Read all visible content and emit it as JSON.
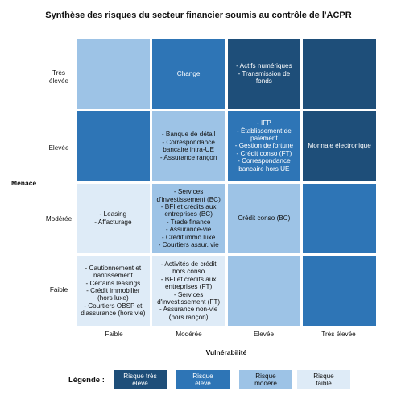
{
  "title": "Synthèse des risques du secteur financier soumis au contrôle de l'ACPR",
  "y_axis_label": "Menace",
  "x_axis_label": "Vulnérabilité",
  "row_labels": [
    "Très\nélevée",
    "Elevée",
    "Modérée",
    "Faible"
  ],
  "col_labels": [
    "Faible",
    "Modérée",
    "Elevée",
    "Très élevée"
  ],
  "colors": {
    "risque_tres_eleve": "#1e4e79",
    "risque_eleve": "#2e75b6",
    "risque_modere": "#9dc3e6",
    "risque_faible": "#deebf7"
  },
  "cells": [
    [
      "",
      "Change",
      "- Actifs numériques\n- Transmission de\nfonds",
      ""
    ],
    [
      "",
      "- Banque de détail\n- Correspondance\nbancaire intra-UE\n- Assurance rançon",
      "- IFP\n- Établissement de\npaiement\n- Gestion de fortune\n- Crédit conso (FT)\n- Correspondance\nbancaire hors UE",
      "Monnaie électronique"
    ],
    [
      "",
      "- Services\nd'investissement (BC)\n- BFI et crédits aux\nentreprises (BC)\n- Trade finance\n- Assurance-vie\n- Crédit immo luxe\n- Courtiers assur. vie",
      "Crédit conso (BC)",
      ""
    ],
    [
      "- Cautionnement et\nnantissement\n- Certains leasings\n- Crédit immobilier\n(hors luxe)\n- Courtiers OBSP et\nd'assurance (hors vie)",
      "- Activités de crédit\nhors conso\n- BFI et crédits aux\nentreprises (FT)\n- Services\nd'investissement (FT)\n- Assurance non-vie\n(hors rançon)",
      "",
      ""
    ]
  ],
  "cells_row3_col0_fix": "- Leasing\n- Affacturage",
  "legend": {
    "title": "Légende :",
    "items": [
      "Risque très\nélevé",
      "Risque\nélevé",
      "Risque\nmodéré",
      "Risque\nfaible"
    ]
  }
}
